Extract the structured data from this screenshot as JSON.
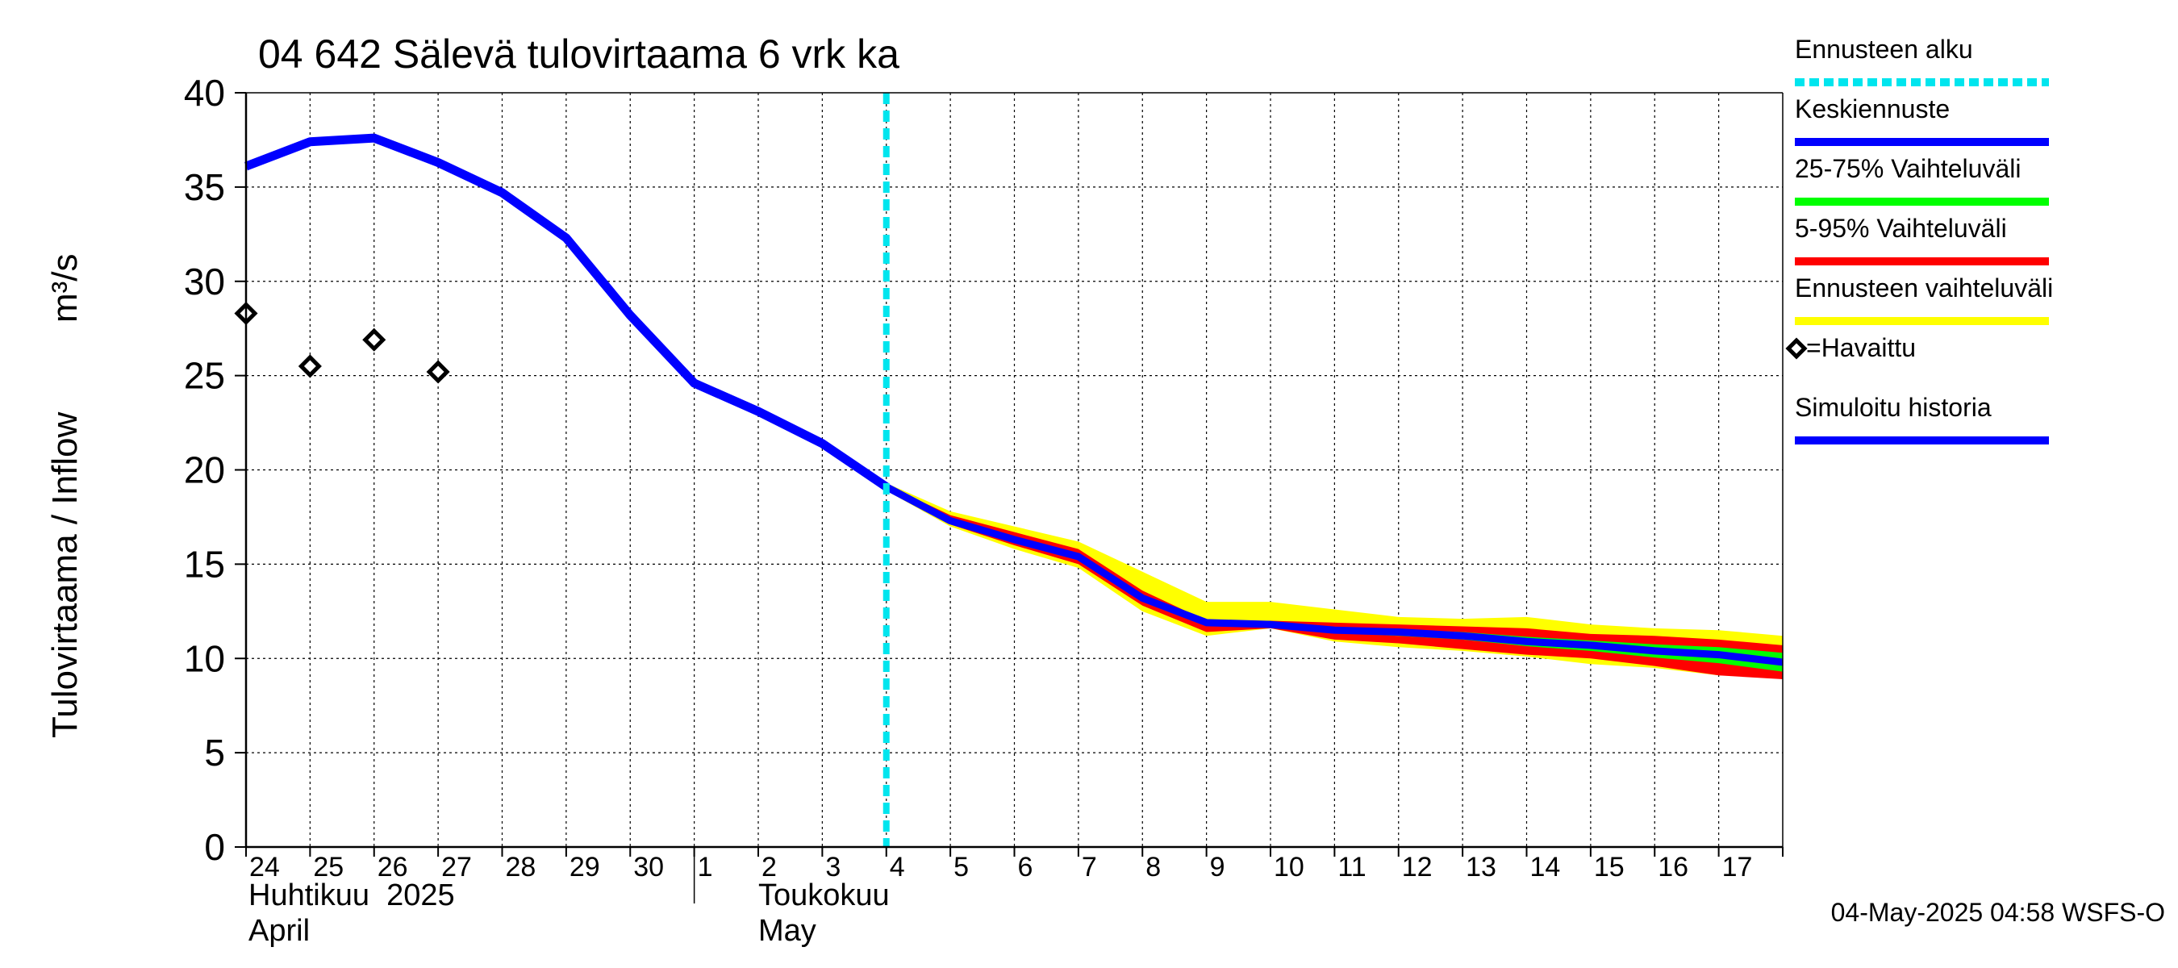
{
  "chart_data": {
    "type": "line",
    "title": "04 642 Sälevä tulovirtaama 6 vrk ka",
    "ylabel": "Tulovirtaama / Inflow",
    "yunit": "m³/s",
    "ylim": [
      0,
      40
    ],
    "yticks": [
      "0",
      "5",
      "10",
      "15",
      "20",
      "25",
      "30",
      "35",
      "40"
    ],
    "grid": true,
    "legend_position": "right",
    "x_day_labels": [
      "24",
      "25",
      "26",
      "27",
      "28",
      "29",
      "30",
      "1",
      "2",
      "3",
      "4",
      "5",
      "6",
      "7",
      "8",
      "9",
      "10",
      "11",
      "12",
      "13",
      "14",
      "15",
      "16",
      "17"
    ],
    "x_dates": [
      "2025-04-24",
      "2025-04-25",
      "2025-04-26",
      "2025-04-27",
      "2025-04-28",
      "2025-04-29",
      "2025-04-30",
      "2025-05-01",
      "2025-05-02",
      "2025-05-03",
      "2025-05-04",
      "2025-05-05",
      "2025-05-06",
      "2025-05-07",
      "2025-05-08",
      "2025-05-09",
      "2025-05-10",
      "2025-05-11",
      "2025-05-12",
      "2025-05-13",
      "2025-05-14",
      "2025-05-15",
      "2025-05-16",
      "2025-05-17",
      "2025-05-18"
    ],
    "month_labels": [
      {
        "fi": "Huhtikuu  2025",
        "en": "April"
      },
      {
        "fi": "Toukokuu",
        "en": "May"
      }
    ],
    "forecast_start": "2025-05-04",
    "series": [
      {
        "name": "Simuloitu historia",
        "color": "#0000ff",
        "x": [
          "2025-04-24",
          "2025-04-25",
          "2025-04-26",
          "2025-04-27",
          "2025-04-28",
          "2025-04-29",
          "2025-04-30",
          "2025-05-01",
          "2025-05-02",
          "2025-05-03",
          "2025-05-04"
        ],
        "values": [
          36.1,
          37.4,
          37.6,
          36.3,
          34.7,
          32.3,
          28.2,
          24.6,
          23.1,
          21.4,
          19.1
        ]
      },
      {
        "name": "Keskiennuste",
        "color": "#0000ff",
        "x": [
          "2025-05-04",
          "2025-05-05",
          "2025-05-06",
          "2025-05-07",
          "2025-05-08",
          "2025-05-09",
          "2025-05-10",
          "2025-05-11",
          "2025-05-12",
          "2025-05-13",
          "2025-05-14",
          "2025-05-15",
          "2025-05-16",
          "2025-05-17",
          "2025-05-18"
        ],
        "values": [
          19.1,
          17.3,
          16.3,
          15.4,
          13.2,
          11.9,
          11.8,
          11.5,
          11.4,
          11.2,
          10.9,
          10.7,
          10.4,
          10.2,
          9.8
        ]
      }
    ],
    "bands": [
      {
        "name": "Ennusteen vaihteluväli",
        "color": "#ffff00",
        "x": [
          "2025-05-04",
          "2025-05-05",
          "2025-05-06",
          "2025-05-07",
          "2025-05-08",
          "2025-05-09",
          "2025-05-10",
          "2025-05-11",
          "2025-05-12",
          "2025-05-13",
          "2025-05-14",
          "2025-05-15",
          "2025-05-16",
          "2025-05-17",
          "2025-05-18"
        ],
        "upper": [
          19.3,
          17.8,
          17.0,
          16.2,
          14.6,
          13.0,
          13.0,
          12.6,
          12.2,
          12.1,
          12.2,
          11.8,
          11.6,
          11.5,
          11.2
        ],
        "lower": [
          18.9,
          17.0,
          15.8,
          14.8,
          12.5,
          11.2,
          11.6,
          10.9,
          10.6,
          10.4,
          10.1,
          9.7,
          9.5,
          9.1,
          9.0
        ]
      },
      {
        "name": "5-95% Vaihteluväli",
        "color": "#ff0000",
        "x": [
          "2025-05-04",
          "2025-05-05",
          "2025-05-06",
          "2025-05-07",
          "2025-05-08",
          "2025-05-09",
          "2025-05-10",
          "2025-05-11",
          "2025-05-12",
          "2025-05-13",
          "2025-05-14",
          "2025-05-15",
          "2025-05-16",
          "2025-05-17",
          "2025-05-18"
        ],
        "upper": [
          19.2,
          17.6,
          16.7,
          15.8,
          13.6,
          12.0,
          12.0,
          11.9,
          11.8,
          11.7,
          11.6,
          11.3,
          11.2,
          11.0,
          10.7
        ],
        "lower": [
          19.0,
          17.1,
          16.0,
          15.0,
          12.8,
          11.4,
          11.6,
          11.0,
          10.8,
          10.5,
          10.2,
          10.0,
          9.6,
          9.1,
          8.9
        ]
      },
      {
        "name": "25-75% Vaihteluväli",
        "color": "#00ff00",
        "x": [
          "2025-05-04",
          "2025-05-05",
          "2025-05-06",
          "2025-05-07",
          "2025-05-08",
          "2025-05-09",
          "2025-05-10",
          "2025-05-11",
          "2025-05-12",
          "2025-05-13",
          "2025-05-14",
          "2025-05-15",
          "2025-05-16",
          "2025-05-17",
          "2025-05-18"
        ],
        "upper": [
          19.15,
          17.4,
          16.45,
          15.55,
          13.35,
          12.0,
          11.9,
          11.65,
          11.55,
          11.4,
          11.15,
          10.95,
          10.75,
          10.6,
          10.3
        ],
        "lower": [
          19.05,
          17.2,
          16.15,
          15.25,
          13.05,
          11.8,
          11.7,
          11.35,
          11.2,
          11.0,
          10.65,
          10.4,
          10.05,
          9.75,
          9.3
        ]
      }
    ],
    "observed": {
      "name": "Havaittu",
      "x": [
        "2025-04-24",
        "2025-04-25",
        "2025-04-26",
        "2025-04-27"
      ],
      "values": [
        28.3,
        25.5,
        26.9,
        25.2
      ]
    },
    "legend": [
      {
        "label": "Ennusteen alku",
        "color": "#00e5ee",
        "style": "dashed"
      },
      {
        "label": "Keskiennuste",
        "color": "#0000ff",
        "style": "solid"
      },
      {
        "label": "25-75% Vaihteluväli",
        "color": "#00ff00",
        "style": "solid"
      },
      {
        "label": "5-95% Vaihteluväli",
        "color": "#ff0000",
        "style": "solid"
      },
      {
        "label": "Ennusteen vaihteluväli",
        "color": "#ffff00",
        "style": "solid"
      },
      {
        "label": "=Havaittu",
        "color": "#000000",
        "style": "diamond"
      },
      {
        "label": "Simuloitu historia",
        "color": "#0000ff",
        "style": "solid"
      }
    ],
    "footer": "04-May-2025 04:58 WSFS-O"
  }
}
